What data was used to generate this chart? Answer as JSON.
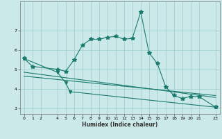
{
  "xlabel": "Humidex (Indice chaleur)",
  "xlim": [
    -0.5,
    23.5
  ],
  "ylim": [
    2.7,
    8.5
  ],
  "xticks": [
    0,
    1,
    2,
    4,
    5,
    6,
    7,
    8,
    9,
    10,
    11,
    12,
    13,
    14,
    15,
    16,
    17,
    18,
    19,
    20,
    21,
    23
  ],
  "yticks": [
    3,
    4,
    5,
    6,
    7
  ],
  "background_color": "#cce9e9",
  "line_color": "#1a7a6e",
  "grid_color": "#99cccc",
  "line1_x": [
    0,
    1,
    4,
    5,
    6,
    7,
    8,
    9,
    10,
    11,
    12,
    13,
    14,
    15,
    16,
    17,
    18,
    19,
    20,
    21,
    23
  ],
  "line1_y": [
    5.55,
    5.15,
    5.0,
    4.9,
    5.5,
    6.25,
    6.55,
    6.55,
    6.65,
    6.7,
    6.55,
    6.6,
    7.95,
    5.85,
    5.3,
    4.1,
    3.65,
    3.5,
    3.6,
    3.6,
    3.05
  ],
  "line2_x": [
    0,
    4,
    5,
    5.5,
    23
  ],
  "line2_y": [
    5.55,
    4.85,
    4.3,
    3.85,
    3.05
  ],
  "line3_x": [
    0,
    23
  ],
  "line3_y": [
    4.85,
    3.55
  ],
  "line4_x": [
    0,
    23
  ],
  "line4_y": [
    4.65,
    3.65
  ]
}
